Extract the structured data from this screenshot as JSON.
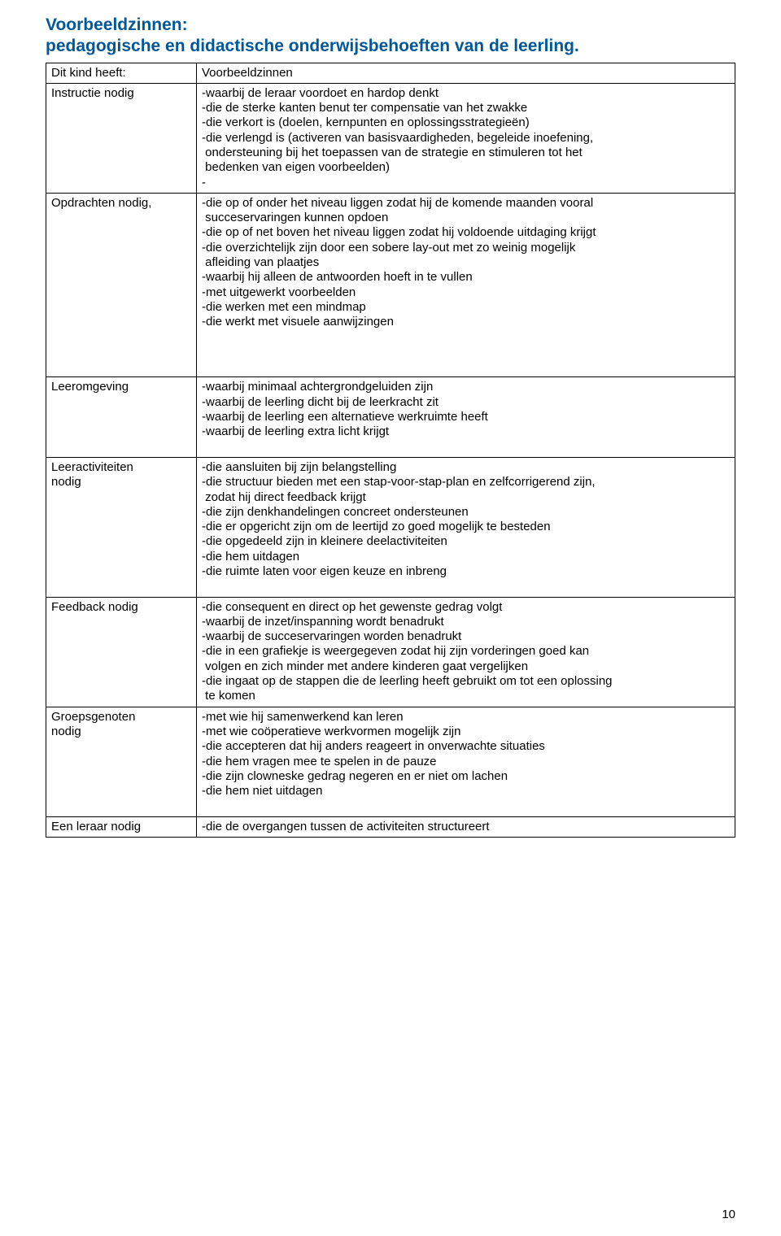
{
  "title_line1": "Voorbeeldzinnen:",
  "title_line2": "pedagogische en didactische onderwijsbehoeften van de leerling.",
  "header": {
    "left": "Dit kind heeft:",
    "right": "Voorbeeldzinnen"
  },
  "rows": {
    "instructie": {
      "label": "Instructie nodig",
      "lines": [
        "-waarbij de leraar voordoet en hardop denkt",
        "-die de sterke kanten benut ter compensatie van het zwakke",
        "-die verkort is (doelen, kernpunten en oplossingsstrategieën)",
        "-die verlengd is (activeren van basisvaardigheden, begeleide inoefening,",
        " ondersteuning bij het toepassen van de strategie en stimuleren tot het",
        " bedenken van eigen voorbeelden)",
        "-"
      ]
    },
    "opdrachten": {
      "label": "Opdrachten nodig,",
      "lines": [
        "-die op of onder het niveau liggen zodat hij de komende maanden vooral",
        " succeservaringen kunnen opdoen",
        "-die op of net boven het niveau liggen zodat hij voldoende uitdaging krijgt",
        "-die overzichtelijk zijn door een sobere lay-out met zo weinig mogelijk",
        " afleiding van plaatjes",
        "-waarbij hij alleen de antwoorden hoeft in te vullen",
        "-met uitgewerkt voorbeelden",
        "-die werken met een mindmap",
        "-die werkt met visuele aanwijzingen"
      ]
    },
    "leeromgeving": {
      "label": "Leeromgeving",
      "lines": [
        "-waarbij minimaal achtergrondgeluiden zijn",
        "-waarbij de leerling dicht bij de leerkracht zit",
        "-waarbij de leerling een alternatieve werkruimte heeft",
        "-waarbij de leerling extra licht krijgt"
      ]
    },
    "leeractiviteiten": {
      "label_l1": "Leeractiviteiten",
      "label_l2": "nodig",
      "lines": [
        "-die aansluiten bij zijn belangstelling",
        "-die structuur bieden met een stap-voor-stap-plan en zelfcorrigerend zijn,",
        " zodat hij direct feedback krijgt",
        "-die zijn denkhandelingen concreet ondersteunen",
        "-die er opgericht zijn om de leertijd zo goed mogelijk te besteden",
        "-die opgedeeld zijn in kleinere deelactiviteiten",
        "-die hem uitdagen",
        "-die ruimte laten voor eigen keuze en inbreng"
      ]
    },
    "feedback": {
      "label": "Feedback nodig",
      "lines": [
        "-die consequent en direct op het gewenste gedrag volgt",
        "-waarbij de inzet/inspanning wordt benadrukt",
        "-waarbij de succeservaringen worden benadrukt",
        "-die in een grafiekje is weergegeven zodat hij zijn vorderingen goed kan",
        " volgen en zich minder met andere kinderen gaat vergelijken",
        "-die ingaat op de stappen die de leerling heeft gebruikt om tot een oplossing",
        " te komen"
      ]
    },
    "groepsgenoten": {
      "label_l1": "Groepsgenoten",
      "label_l2": "nodig",
      "lines": [
        "-met wie hij samenwerkend kan leren",
        "-met wie coöperatieve werkvormen mogelijk zijn",
        "-die accepteren dat hij anders reageert in onverwachte situaties",
        "-die hem vragen mee te spelen in de pauze",
        "-die zijn clowneske gedrag negeren en er niet om lachen",
        "-die hem niet uitdagen"
      ]
    },
    "leraar": {
      "label": "Een leraar nodig",
      "lines": [
        "-die de overgangen tussen de activiteiten structureert"
      ]
    }
  },
  "pad_rows": {
    "after_opdrachten": 3,
    "after_leeromgeving": 1,
    "after_leeractiviteiten": 1,
    "after_groepsgenoten": 1
  },
  "page_number": "10"
}
